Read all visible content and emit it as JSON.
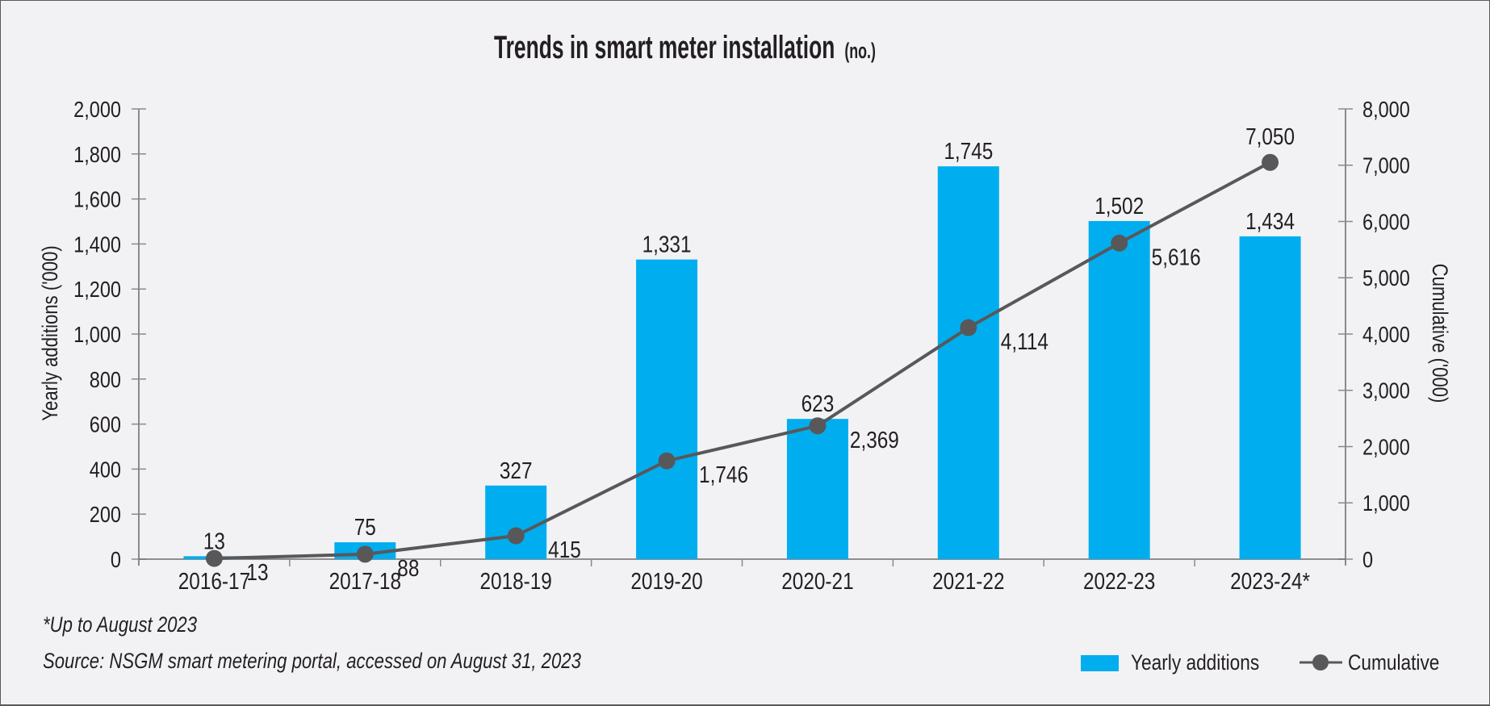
{
  "chart_data": {
    "type": "bar",
    "title": "Trends in smart meter installation",
    "title_unit": "(no.)",
    "categories": [
      "2016-17",
      "2017-18",
      "2018-19",
      "2019-20",
      "2020-21",
      "2021-22",
      "2022-23",
      "2023-24*"
    ],
    "series": [
      {
        "name": "Yearly additions",
        "kind": "bar",
        "axis": "left",
        "color": "#00aeef",
        "values": [
          13,
          75,
          327,
          1331,
          623,
          1745,
          1502,
          1434
        ],
        "labels": [
          "13",
          "75",
          "327",
          "1,331",
          "623",
          "1,745",
          "1,502",
          "1,434"
        ]
      },
      {
        "name": "Cumulative",
        "kind": "line",
        "axis": "right",
        "color": "#58585a",
        "values": [
          13,
          88,
          415,
          1746,
          2369,
          4114,
          5616,
          7050
        ],
        "labels": [
          "13",
          "88",
          "415",
          "1,746",
          "2,369",
          "4,114",
          "5,616",
          "7,050"
        ]
      }
    ],
    "ylabel": "Yearly additions ('000)",
    "ylabel_right": "Cumulative ('000)",
    "xlabel": "",
    "ylim": [
      0,
      2000
    ],
    "ylim_right": [
      0,
      8000
    ],
    "yticks": [
      0,
      200,
      400,
      600,
      800,
      1000,
      1200,
      1400,
      1600,
      1800,
      2000
    ],
    "ytick_labels": [
      "0",
      "200",
      "400",
      "600",
      "800",
      "1,000",
      "1,200",
      "1,400",
      "1,600",
      "1,800",
      "2,000"
    ],
    "yticks_right": [
      0,
      1000,
      2000,
      3000,
      4000,
      5000,
      6000,
      7000,
      8000
    ],
    "ytick_labels_right": [
      "0",
      "1,000",
      "2,000",
      "3,000",
      "4,000",
      "5,000",
      "6,000",
      "7,000",
      "8,000"
    ],
    "grid": false,
    "legend_position": "bottom-right"
  },
  "footnotes": {
    "note": "*Up to August 2023",
    "source": "Source: NSGM smart metering portal, accessed on August 31, 2023"
  },
  "legend": {
    "bar_label": "Yearly additions",
    "line_label": "Cumulative"
  }
}
